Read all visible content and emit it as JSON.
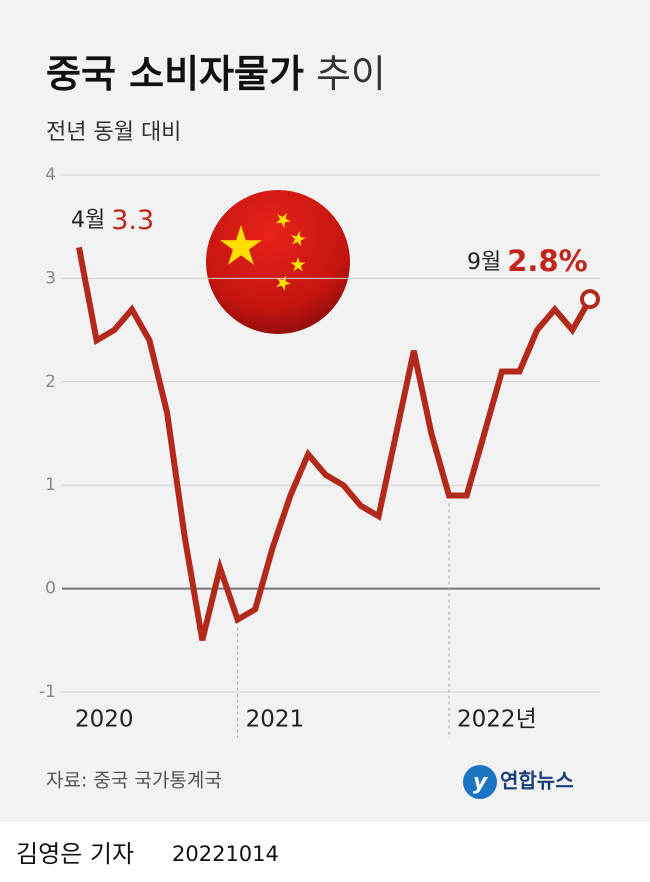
{
  "chart_data": {
    "type": "line",
    "title": [
      "중국 소비자물가",
      "추이"
    ],
    "subtitle": "전년 동월 대비",
    "categories": [
      "2020",
      null,
      null,
      null,
      null,
      null,
      null,
      null,
      null,
      "2021",
      null,
      null,
      null,
      null,
      null,
      null,
      null,
      null,
      null,
      null,
      null,
      "2022년",
      null,
      null,
      null,
      null,
      null,
      null,
      null,
      null
    ],
    "values": [
      3.3,
      2.4,
      2.5,
      2.7,
      2.4,
      1.7,
      0.5,
      -0.5,
      0.2,
      -0.3,
      -0.2,
      0.4,
      0.9,
      1.3,
      1.1,
      1.0,
      0.8,
      0.7,
      1.5,
      2.3,
      1.5,
      0.9,
      0.9,
      1.5,
      2.1,
      2.1,
      2.5,
      2.7,
      2.5,
      2.8
    ],
    "value_labels": [
      "3.3",
      null,
      null,
      null,
      null,
      null,
      null,
      null,
      null,
      null,
      null,
      null,
      null,
      null,
      null,
      null,
      null,
      null,
      null,
      null,
      null,
      null,
      null,
      null,
      null,
      null,
      null,
      null,
      null,
      "2.8%"
    ],
    "month_labels": [
      "4월",
      null,
      null,
      null,
      null,
      null,
      null,
      null,
      null,
      null,
      null,
      null,
      null,
      null,
      null,
      null,
      null,
      null,
      null,
      null,
      null,
      null,
      null,
      null,
      null,
      null,
      null,
      null,
      null,
      "9월"
    ],
    "color": "#b3291b",
    "ylim": [
      -1,
      4
    ],
    "yticks": [
      -1,
      0,
      1,
      2,
      3,
      4
    ],
    "grid": true,
    "source": "자료: 중국 국가통계국",
    "logo": "연합뉴스"
  },
  "footer": {
    "reporter": "김영은 기자",
    "date": "20221014"
  }
}
